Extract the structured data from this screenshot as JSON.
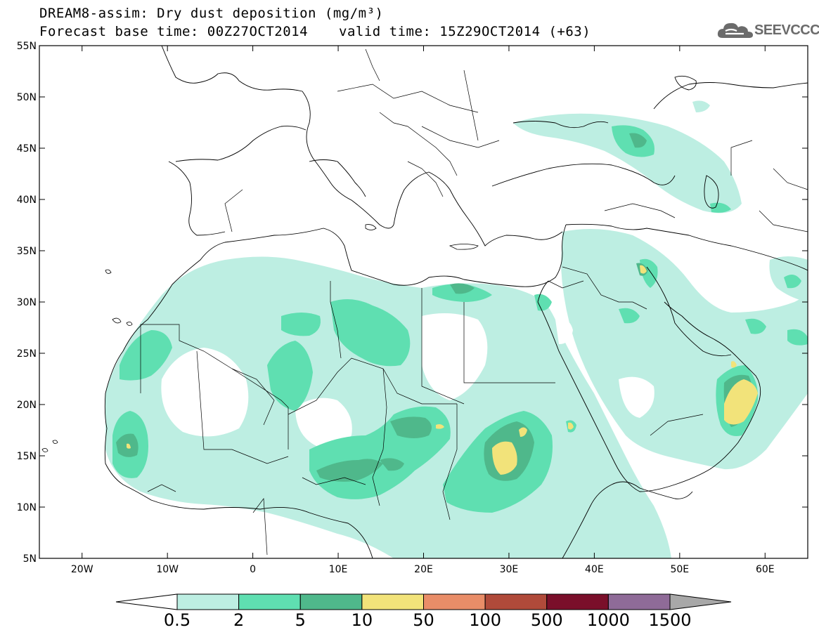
{
  "title": {
    "line1": "DREAM8-assim: Dry dust deposition (mg/m³)",
    "line2": "Forecast base time: 00Z27OCT2014",
    "valid": "valid time: 15Z29OCT2014 (+63)"
  },
  "logo": {
    "text": "SEEVCCC",
    "icon": "cloud-icon"
  },
  "map": {
    "lon_range": [
      -25,
      65
    ],
    "lat_range": [
      5,
      55
    ],
    "lat_ticks": [
      {
        "value": 55,
        "label": "55N"
      },
      {
        "value": 50,
        "label": "50N"
      },
      {
        "value": 45,
        "label": "45N"
      },
      {
        "value": 40,
        "label": "40N"
      },
      {
        "value": 35,
        "label": "35N"
      },
      {
        "value": 30,
        "label": "30N"
      },
      {
        "value": 25,
        "label": "25N"
      },
      {
        "value": 20,
        "label": "20N"
      },
      {
        "value": 15,
        "label": "15N"
      },
      {
        "value": 10,
        "label": "10N"
      },
      {
        "value": 5,
        "label": "5N"
      }
    ],
    "lon_ticks": [
      {
        "value": -20,
        "label": "20W"
      },
      {
        "value": -10,
        "label": "10W"
      },
      {
        "value": 0,
        "label": "0"
      },
      {
        "value": 10,
        "label": "10E"
      },
      {
        "value": 20,
        "label": "20E"
      },
      {
        "value": 30,
        "label": "30E"
      },
      {
        "value": 40,
        "label": "40E"
      },
      {
        "value": 50,
        "label": "50E"
      },
      {
        "value": 60,
        "label": "60E"
      }
    ],
    "colors": {
      "c0_5": "#bdeee2",
      "c2": "#5fdfb1",
      "c5": "#4fb88b",
      "c10": "#f2e37a",
      "c50": "#e98d68",
      "c100": "#b04a3a",
      "c500": "#7a0f2a",
      "c1000": "#8f6b98",
      "c1500": "#a8a8a8",
      "coast": "#000000"
    }
  },
  "colorbar": {
    "levels": [
      "0.5",
      "2",
      "5",
      "10",
      "50",
      "100",
      "500",
      "1000",
      "1500"
    ],
    "colors": [
      "#bdeee2",
      "#5fdfb1",
      "#4fb88b",
      "#f2e37a",
      "#e98d68",
      "#b04a3a",
      "#7a0f2a",
      "#8f6b98",
      "#a8a8a8"
    ],
    "under_color": "#ffffff",
    "over_color": "#a8a8a8"
  }
}
